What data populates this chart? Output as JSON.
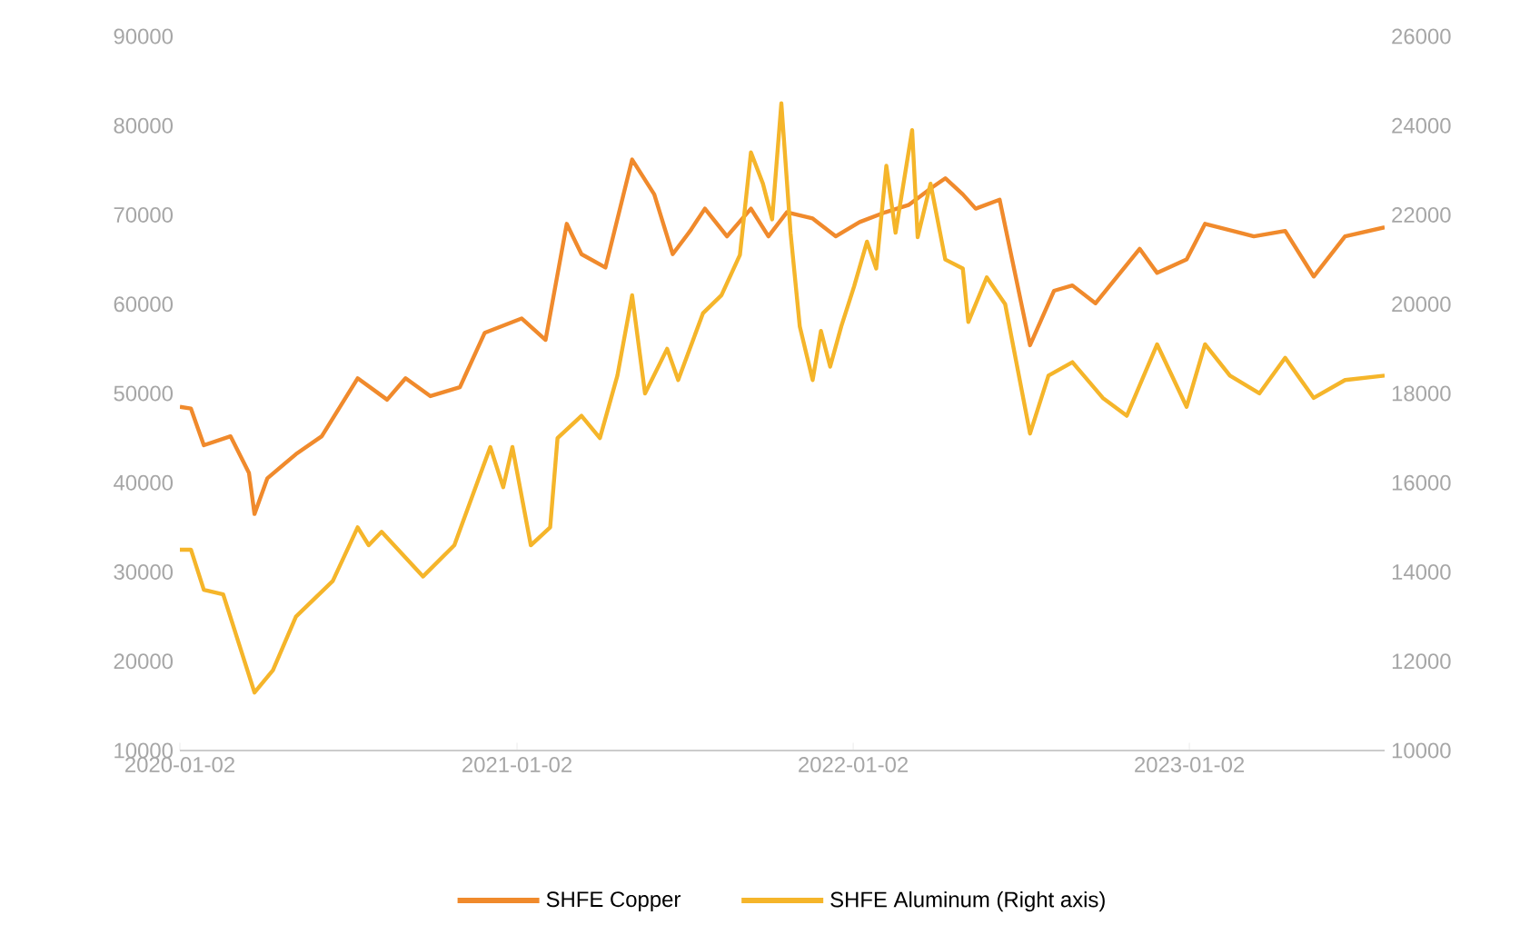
{
  "chart_data": {
    "type": "line",
    "xlim": [
      "2020-01-02",
      "2023-08-02"
    ],
    "xticks": [
      "2020-01-02",
      "2021-01-02",
      "2022-01-02",
      "2023-01-02"
    ],
    "ylim": [
      10000,
      90000
    ],
    "yticks": [
      10000,
      20000,
      30000,
      40000,
      50000,
      60000,
      70000,
      80000,
      90000
    ],
    "y2lim": [
      10000,
      26000
    ],
    "y2ticks": [
      10000,
      12000,
      14000,
      16000,
      18000,
      20000,
      22000,
      24000,
      26000
    ],
    "legend": "bottom",
    "series": [
      {
        "name": "SHFE Copper",
        "color": "#f08a2c",
        "x": [
          "2020-01-02",
          "2020-01-14",
          "2020-01-28",
          "2020-02-26",
          "2020-03-17",
          "2020-03-23",
          "2020-04-06",
          "2020-05-07",
          "2020-06-04",
          "2020-07-13",
          "2020-08-14",
          "2020-09-03",
          "2020-09-30",
          "2020-11-01",
          "2020-11-28",
          "2021-01-07",
          "2021-02-02",
          "2021-02-25",
          "2021-03-13",
          "2021-04-08",
          "2021-05-07",
          "2021-05-31",
          "2021-06-20",
          "2021-07-09",
          "2021-07-25",
          "2021-08-18",
          "2021-09-13",
          "2021-10-02",
          "2021-10-22",
          "2021-11-19",
          "2021-12-14",
          "2022-01-09",
          "2022-02-06",
          "2022-03-03",
          "2022-03-29",
          "2022-04-12",
          "2022-05-01",
          "2022-05-15",
          "2022-06-10",
          "2022-07-13",
          "2022-08-08",
          "2022-08-28",
          "2022-09-22",
          "2022-11-09",
          "2022-11-28",
          "2022-12-30",
          "2023-01-19",
          "2023-03-13",
          "2023-04-16",
          "2023-05-17",
          "2023-06-20",
          "2023-08-02"
        ],
        "values": [
          48500,
          48300,
          44200,
          45200,
          41100,
          36500,
          40500,
          43200,
          45200,
          51700,
          49300,
          51700,
          49700,
          50700,
          56800,
          58400,
          56000,
          69000,
          65600,
          64100,
          76200,
          72300,
          65600,
          68200,
          70700,
          67600,
          70700,
          67600,
          70300,
          69600,
          67600,
          69200,
          70300,
          71100,
          73100,
          74100,
          72300,
          70700,
          71700,
          55400,
          61500,
          62100,
          60100,
          66200,
          63500,
          65000,
          69000,
          67600,
          68200,
          63100,
          67600,
          68600
        ]
      },
      {
        "name": "SHFE Aluminum (Right axis)",
        "color": "#f5b52a",
        "axis": "y2",
        "x": [
          "2020-01-02",
          "2020-01-14",
          "2020-01-28",
          "2020-02-18",
          "2020-03-23",
          "2020-04-12",
          "2020-05-07",
          "2020-06-16",
          "2020-07-13",
          "2020-07-25",
          "2020-08-08",
          "2020-09-22",
          "2020-10-26",
          "2020-12-04",
          "2020-12-18",
          "2020-12-28",
          "2021-01-17",
          "2021-02-07",
          "2021-02-15",
          "2021-03-13",
          "2021-04-02",
          "2021-04-21",
          "2021-05-07",
          "2021-05-21",
          "2021-06-14",
          "2021-06-26",
          "2021-07-23",
          "2021-08-12",
          "2021-09-01",
          "2021-09-13",
          "2021-09-26",
          "2021-10-06",
          "2021-10-16",
          "2021-10-26",
          "2021-11-05",
          "2021-11-19",
          "2021-11-28",
          "2021-12-08",
          "2021-12-20",
          "2022-01-03",
          "2022-01-17",
          "2022-01-27",
          "2022-02-07",
          "2022-02-17",
          "2022-03-07",
          "2022-03-13",
          "2022-03-27",
          "2022-04-12",
          "2022-05-01",
          "2022-05-07",
          "2022-05-27",
          "2022-06-16",
          "2022-07-13",
          "2022-08-02",
          "2022-08-28",
          "2022-09-30",
          "2022-10-26",
          "2022-11-28",
          "2022-12-30",
          "2023-01-19",
          "2023-02-15",
          "2023-03-19",
          "2023-04-16",
          "2023-05-17",
          "2023-06-20",
          "2023-08-02"
        ],
        "values": [
          14500,
          14500,
          13600,
          13500,
          11300,
          11800,
          13000,
          13800,
          15000,
          14600,
          14900,
          13900,
          14600,
          16800,
          15900,
          16800,
          14600,
          15000,
          17000,
          17500,
          17000,
          18400,
          20200,
          18000,
          19000,
          18300,
          19800,
          20200,
          21100,
          23400,
          22700,
          21900,
          24500,
          21600,
          19500,
          18300,
          19400,
          18600,
          19500,
          20400,
          21400,
          20800,
          23100,
          21600,
          23900,
          21500,
          22700,
          21000,
          20800,
          19600,
          20600,
          20000,
          17100,
          18400,
          18700,
          17900,
          17500,
          19100,
          17700,
          19100,
          18400,
          18000,
          18800,
          17900,
          18300,
          18400
        ]
      }
    ]
  }
}
